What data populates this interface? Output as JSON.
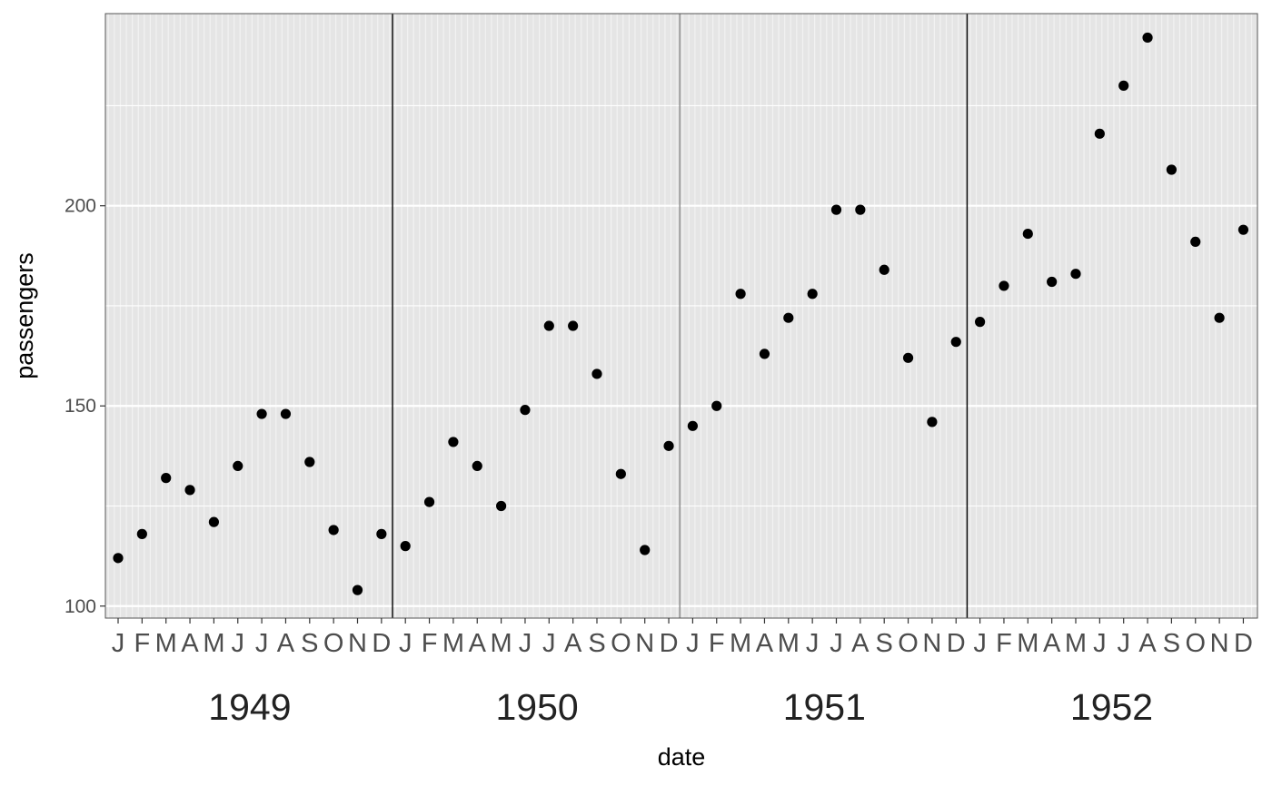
{
  "chart_data": {
    "type": "scatter",
    "title": "",
    "xlabel": "date",
    "ylabel": "passengers",
    "ylim": [
      97,
      248
    ],
    "yticks": [
      100,
      150,
      200
    ],
    "grid": true,
    "month_labels": [
      "J",
      "F",
      "M",
      "A",
      "M",
      "J",
      "J",
      "A",
      "S",
      "O",
      "N",
      "D"
    ],
    "years": [
      "1949",
      "1950",
      "1951",
      "1952"
    ],
    "series": [
      {
        "x": [
          "1949-01",
          "1949-02",
          "1949-03",
          "1949-04",
          "1949-05",
          "1949-06",
          "1949-07",
          "1949-08",
          "1949-09",
          "1949-10",
          "1949-11",
          "1949-12",
          "1950-01",
          "1950-02",
          "1950-03",
          "1950-04",
          "1950-05",
          "1950-06",
          "1950-07",
          "1950-08",
          "1950-09",
          "1950-10",
          "1950-11",
          "1950-12",
          "1951-01",
          "1951-02",
          "1951-03",
          "1951-04",
          "1951-05",
          "1951-06",
          "1951-07",
          "1951-08",
          "1951-09",
          "1951-10",
          "1951-11",
          "1951-12",
          "1952-01",
          "1952-02",
          "1952-03",
          "1952-04",
          "1952-05",
          "1952-06",
          "1952-07",
          "1952-08",
          "1952-09",
          "1952-10",
          "1952-11",
          "1952-12"
        ],
        "values": [
          112,
          118,
          132,
          129,
          121,
          135,
          148,
          148,
          136,
          119,
          104,
          118,
          115,
          126,
          141,
          135,
          125,
          149,
          170,
          170,
          158,
          133,
          114,
          140,
          145,
          150,
          178,
          163,
          172,
          178,
          199,
          199,
          184,
          162,
          146,
          166,
          171,
          180,
          193,
          181,
          183,
          218,
          230,
          242,
          209,
          191,
          172,
          194
        ]
      }
    ]
  }
}
